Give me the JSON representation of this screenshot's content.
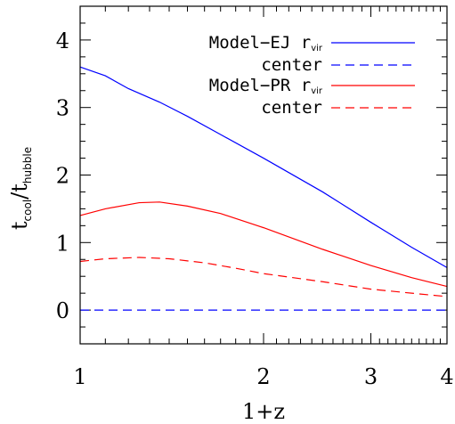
{
  "chart_data": {
    "type": "line",
    "xlabel": "1+z",
    "ylabel": {
      "main": "t",
      "sub1": "cool",
      "slash": "/t",
      "sub2": "hubble"
    },
    "xscale": "log",
    "xlim": [
      1,
      4
    ],
    "ylim": [
      -0.5,
      4.5
    ],
    "xticks": [
      1,
      2,
      3,
      4
    ],
    "xticklabels": [
      "1",
      "2",
      "3",
      "4"
    ],
    "yticks": [
      0,
      1,
      2,
      3,
      4
    ],
    "yticklabels": [
      "0",
      "1",
      "2",
      "3",
      "4"
    ],
    "legend_position": "top-right",
    "series": [
      {
        "name": "Model−EJ",
        "label_suffix": "r",
        "label_sub": "vir",
        "color": "#0000ff",
        "dash": "solid",
        "x": [
          1.0,
          1.1,
          1.2,
          1.35,
          1.5,
          1.7,
          2.0,
          2.5,
          3.0,
          3.5,
          4.0
        ],
        "y": [
          3.6,
          3.47,
          3.28,
          3.08,
          2.87,
          2.6,
          2.25,
          1.75,
          1.3,
          0.93,
          0.63
        ]
      },
      {
        "name": "center",
        "color": "#0000ff",
        "dash": "dashed",
        "x": [
          1.0,
          4.0
        ],
        "y": [
          0.0,
          0.0
        ]
      },
      {
        "name": "Model−PR",
        "label_suffix": "r",
        "label_sub": "vir",
        "color": "#ff0000",
        "dash": "solid",
        "x": [
          1.0,
          1.1,
          1.25,
          1.35,
          1.5,
          1.7,
          2.0,
          2.5,
          3.0,
          3.5,
          4.0
        ],
        "y": [
          1.4,
          1.5,
          1.59,
          1.6,
          1.54,
          1.43,
          1.22,
          0.9,
          0.66,
          0.48,
          0.35
        ]
      },
      {
        "name": "center",
        "color": "#ff0000",
        "dash": "dashed",
        "x": [
          1.0,
          1.1,
          1.25,
          1.4,
          1.6,
          1.8,
          2.0,
          2.5,
          3.0,
          3.5,
          4.0
        ],
        "y": [
          0.72,
          0.76,
          0.78,
          0.76,
          0.7,
          0.62,
          0.54,
          0.42,
          0.31,
          0.25,
          0.2
        ]
      }
    ]
  }
}
